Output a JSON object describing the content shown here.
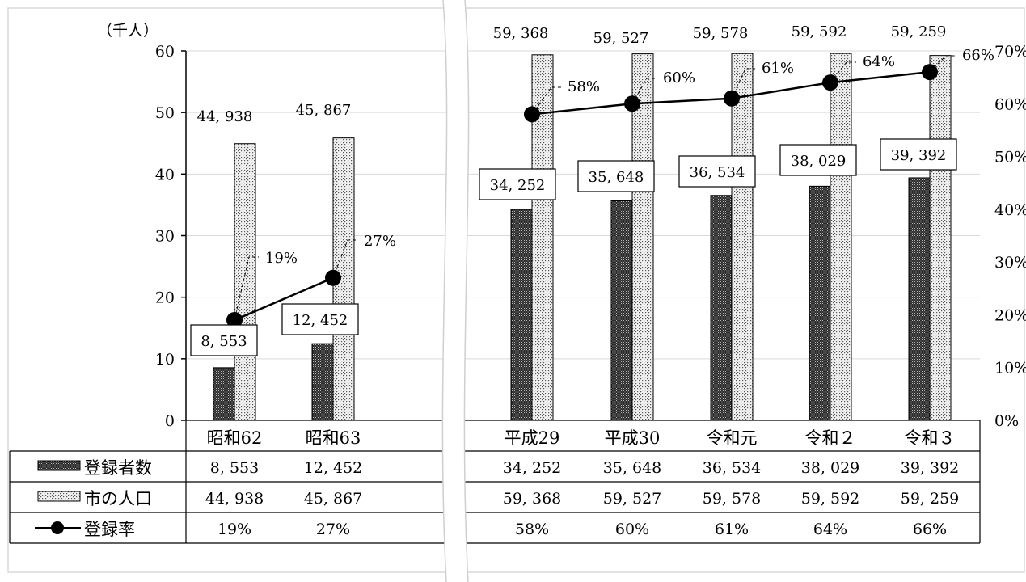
{
  "chart_data": {
    "type": "bar",
    "unit_label": "（千人）",
    "categories": [
      "昭和62",
      "昭和63",
      "平成29",
      "平成30",
      "令和元",
      "令和２",
      "令和３"
    ],
    "y_left": {
      "min": 0,
      "max": 60,
      "ticks": [
        "0",
        "10",
        "20",
        "30",
        "40",
        "50",
        "60"
      ]
    },
    "y_right": {
      "min": 0,
      "max": 0.7,
      "ticks": [
        "0%",
        "10%",
        "20%",
        "30%",
        "40%",
        "50%",
        "60%",
        "70%"
      ]
    },
    "axis_break_between": [
      1,
      2
    ],
    "grid": true,
    "series": [
      {
        "name": "登録者数",
        "kind": "bar",
        "pattern": "dark",
        "values": [
          8.553,
          12.452,
          34.252,
          35.648,
          36.534,
          38.029,
          39.392
        ],
        "labels": [
          "8, 553",
          "12, 452",
          "34, 252",
          "35, 648",
          "36, 534",
          "38, 029",
          "39, 392"
        ]
      },
      {
        "name": "市の人口",
        "kind": "bar",
        "pattern": "light",
        "values": [
          44.938,
          45.867,
          59.368,
          59.527,
          59.578,
          59.592,
          59.259
        ],
        "labels": [
          "44, 938",
          "45, 867",
          "59, 368",
          "59, 527",
          "59, 578",
          "59, 592",
          "59, 259"
        ]
      },
      {
        "name": "登録率",
        "kind": "line",
        "axis": "right",
        "values": [
          0.19,
          0.27,
          0.58,
          0.6,
          0.61,
          0.64,
          0.66
        ],
        "labels": [
          "19%",
          "27%",
          "58%",
          "60%",
          "61%",
          "64%",
          "66%"
        ]
      }
    ]
  }
}
